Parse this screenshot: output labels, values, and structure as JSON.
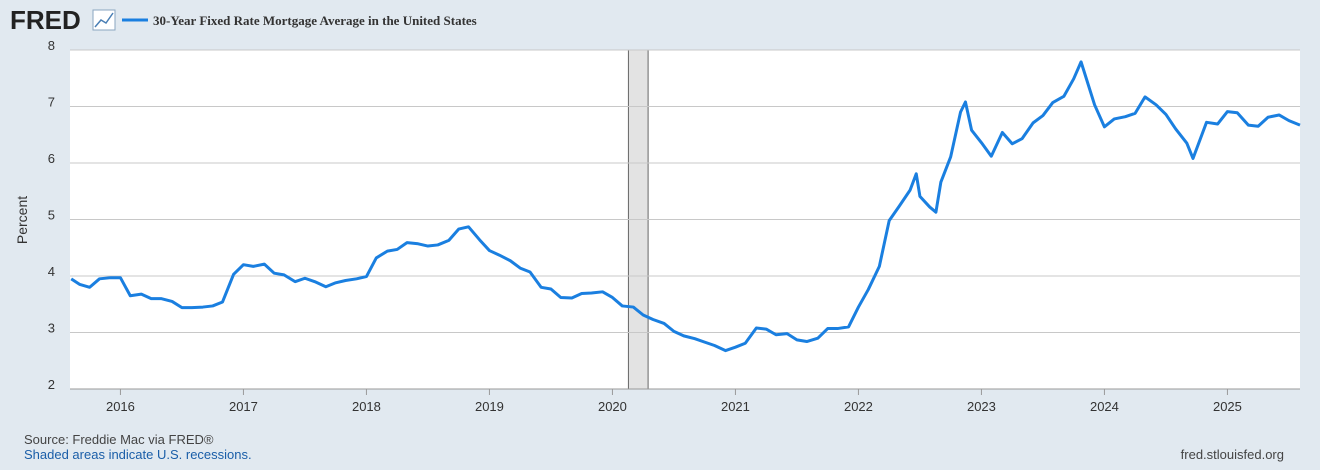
{
  "chart_data": {
    "type": "line",
    "logo": "FRED",
    "ylabel": "Percent",
    "source": "Source: Freddie Mac via FRED®",
    "note": "Shaded areas indicate U.S. recessions.",
    "site": "fred.stlouisfed.org",
    "grid": true,
    "recessions": [
      [
        2020.13,
        2020.29
      ]
    ],
    "xlim": [
      2015.59,
      2025.59
    ],
    "xticks": [
      2016,
      2017,
      2018,
      2019,
      2020,
      2021,
      2022,
      2023,
      2024,
      2025
    ],
    "ylim": [
      2,
      8
    ],
    "yticks": [
      2,
      3,
      4,
      5,
      6,
      7,
      8
    ],
    "x": [
      2015.6,
      2015.67,
      2015.75,
      2015.83,
      2015.92,
      2016.0,
      2016.08,
      2016.17,
      2016.25,
      2016.33,
      2016.42,
      2016.5,
      2016.58,
      2016.67,
      2016.75,
      2016.83,
      2016.92,
      2017.0,
      2017.08,
      2017.17,
      2017.25,
      2017.33,
      2017.42,
      2017.5,
      2017.58,
      2017.67,
      2017.75,
      2017.83,
      2017.92,
      2018.0,
      2018.08,
      2018.17,
      2018.25,
      2018.33,
      2018.42,
      2018.5,
      2018.58,
      2018.67,
      2018.75,
      2018.83,
      2018.92,
      2019.0,
      2019.08,
      2019.17,
      2019.25,
      2019.33,
      2019.42,
      2019.5,
      2019.58,
      2019.67,
      2019.75,
      2019.83,
      2019.92,
      2020.0,
      2020.08,
      2020.17,
      2020.25,
      2020.33,
      2020.42,
      2020.5,
      2020.58,
      2020.67,
      2020.75,
      2020.83,
      2020.92,
      2021.0,
      2021.08,
      2021.17,
      2021.25,
      2021.33,
      2021.42,
      2021.5,
      2021.58,
      2021.67,
      2021.75,
      2021.83,
      2021.92,
      2022.0,
      2022.08,
      2022.17,
      2022.25,
      2022.33,
      2022.42,
      2022.47,
      2022.5,
      2022.58,
      2022.63,
      2022.67,
      2022.75,
      2022.83,
      2022.87,
      2022.92,
      2023.0,
      2023.08,
      2023.17,
      2023.25,
      2023.33,
      2023.42,
      2023.5,
      2023.58,
      2023.67,
      2023.75,
      2023.81,
      2023.92,
      2024.0,
      2024.08,
      2024.17,
      2024.25,
      2024.33,
      2024.42,
      2024.5,
      2024.58,
      2024.67,
      2024.72,
      2024.83,
      2024.92,
      2025.0,
      2025.08,
      2025.17,
      2025.25,
      2025.33,
      2025.42,
      2025.5,
      2025.59
    ],
    "series": [
      {
        "name": "30-Year Fixed Rate Mortgage Average in the United States",
        "color": "#1a7fe0",
        "values": [
          3.95,
          3.85,
          3.8,
          3.95,
          3.97,
          3.97,
          3.65,
          3.68,
          3.6,
          3.6,
          3.55,
          3.44,
          3.44,
          3.45,
          3.47,
          3.54,
          4.03,
          4.2,
          4.17,
          4.21,
          4.05,
          4.02,
          3.9,
          3.96,
          3.9,
          3.81,
          3.88,
          3.92,
          3.95,
          3.99,
          4.32,
          4.44,
          4.47,
          4.59,
          4.57,
          4.53,
          4.55,
          4.63,
          4.83,
          4.87,
          4.64,
          4.45,
          4.37,
          4.27,
          4.14,
          4.07,
          3.8,
          3.77,
          3.62,
          3.61,
          3.69,
          3.7,
          3.72,
          3.62,
          3.47,
          3.45,
          3.31,
          3.23,
          3.16,
          3.02,
          2.94,
          2.89,
          2.83,
          2.77,
          2.68,
          2.74,
          2.81,
          3.08,
          3.06,
          2.96,
          2.98,
          2.87,
          2.84,
          2.9,
          3.07,
          3.07,
          3.1,
          3.45,
          3.76,
          4.17,
          4.98,
          5.23,
          5.52,
          5.81,
          5.41,
          5.22,
          5.13,
          5.66,
          6.11,
          6.9,
          7.08,
          6.58,
          6.36,
          6.12,
          6.54,
          6.34,
          6.43,
          6.71,
          6.84,
          7.07,
          7.18,
          7.49,
          7.79,
          7.03,
          6.64,
          6.78,
          6.82,
          6.88,
          7.17,
          7.03,
          6.86,
          6.6,
          6.35,
          6.08,
          6.72,
          6.69,
          6.91,
          6.89,
          6.67,
          6.65,
          6.81,
          6.85,
          6.75,
          6.67
        ]
      }
    ]
  }
}
